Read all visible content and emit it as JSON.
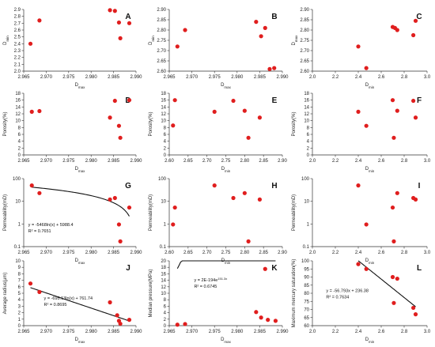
{
  "chart_data": [
    {
      "id": "A",
      "type": "scatter",
      "label": "A",
      "xlabel": "D_max",
      "ylabel": "D_min",
      "xlim": [
        2.965,
        2.99
      ],
      "ylim": [
        2,
        2.9
      ],
      "xticks": [
        2.965,
        2.97,
        2.975,
        2.98,
        2.985,
        2.99
      ],
      "yticks": [
        2,
        2.1,
        2.2,
        2.3,
        2.4,
        2.5,
        2.6,
        2.7,
        2.8,
        2.9
      ],
      "x": [
        2.9665,
        2.9685,
        2.9842,
        2.9853,
        2.9862,
        2.9865,
        2.9885
      ],
      "y": [
        2.4,
        2.74,
        2.89,
        2.88,
        2.71,
        2.48,
        2.7
      ]
    },
    {
      "id": "B",
      "type": "scatter",
      "label": "B",
      "xlabel": "D_max",
      "ylabel": "D_min",
      "xlim": [
        2.965,
        2.99
      ],
      "ylim": [
        2.6,
        2.9
      ],
      "xticks": [
        2.965,
        2.97,
        2.975,
        2.98,
        2.985,
        2.99
      ],
      "yticks": [
        2.6,
        2.65,
        2.7,
        2.75,
        2.8,
        2.85,
        2.9
      ],
      "x": [
        2.9668,
        2.9685,
        2.9842,
        2.9853,
        2.9862,
        2.9872,
        2.9882
      ],
      "y": [
        2.72,
        2.8,
        2.84,
        2.77,
        2.81,
        2.61,
        2.615
      ]
    },
    {
      "id": "C",
      "type": "scatter",
      "label": "C",
      "xlabel": "D_min",
      "ylabel": "D_max",
      "xlim": [
        2,
        3
      ],
      "ylim": [
        2.6,
        2.9
      ],
      "xticks": [
        2,
        2.2,
        2.4,
        2.6,
        2.8,
        3
      ],
      "yticks": [
        2.6,
        2.65,
        2.7,
        2.75,
        2.8,
        2.85,
        2.9
      ],
      "x": [
        2.4,
        2.47,
        2.7,
        2.72,
        2.74,
        2.88,
        2.9
      ],
      "y": [
        2.72,
        2.615,
        2.815,
        2.81,
        2.8,
        2.775,
        2.845
      ]
    },
    {
      "id": "D",
      "type": "scatter",
      "label": "D",
      "xlabel": "D_max",
      "ylabel": "Porosity(%)",
      "xlim": [
        2.965,
        2.99
      ],
      "ylim": [
        0,
        18
      ],
      "xticks": [
        2.965,
        2.97,
        2.975,
        2.98,
        2.985,
        2.99
      ],
      "yticks": [
        0,
        2,
        4,
        6,
        8,
        10,
        12,
        14,
        16,
        18
      ],
      "x": [
        2.9668,
        2.9685,
        2.9842,
        2.9853,
        2.9862,
        2.9865,
        2.9885
      ],
      "y": [
        12.6,
        12.8,
        10.9,
        15.8,
        8.5,
        5,
        16
      ]
    },
    {
      "id": "E",
      "type": "scatter",
      "label": "E",
      "xlabel": "D_min",
      "ylabel": "Porosity(%)",
      "xlim": [
        2.6,
        2.9
      ],
      "ylim": [
        0,
        18
      ],
      "xticks": [
        2.6,
        2.65,
        2.7,
        2.75,
        2.8,
        2.85,
        2.9
      ],
      "yticks": [
        0,
        2,
        4,
        6,
        8,
        10,
        12,
        14,
        16,
        18
      ],
      "x": [
        2.61,
        2.615,
        2.72,
        2.77,
        2.8,
        2.81,
        2.84
      ],
      "y": [
        8.6,
        16,
        12.6,
        15.8,
        12.9,
        5,
        10.9
      ]
    },
    {
      "id": "F",
      "type": "scatter",
      "label": "F",
      "xlabel": "D_min",
      "ylabel": "Porosity(%)",
      "xlim": [
        2,
        3
      ],
      "ylim": [
        0,
        18
      ],
      "xticks": [
        2,
        2.2,
        2.4,
        2.6,
        2.8,
        3
      ],
      "yticks": [
        0,
        2,
        4,
        6,
        8,
        10,
        12,
        14,
        16,
        18
      ],
      "x": [
        2.4,
        2.47,
        2.7,
        2.71,
        2.74,
        2.88,
        2.9
      ],
      "y": [
        12.6,
        8.5,
        16,
        5,
        12.9,
        15.8,
        10.9
      ]
    },
    {
      "id": "G",
      "type": "scatter",
      "label": "G",
      "xlabel": "D_max",
      "ylabel": "Permeability(mD)",
      "yscale": "log",
      "xlim": [
        2.965,
        2.99
      ],
      "ylim": [
        0.1,
        100
      ],
      "xticks": [
        2.965,
        2.97,
        2.975,
        2.98,
        2.985,
        2.99
      ],
      "yticks": [
        0.1,
        1,
        10,
        100
      ],
      "ytick_labels": [
        "0.1",
        "1",
        "10",
        "100"
      ],
      "x": [
        2.9668,
        2.9685,
        2.9842,
        2.9853,
        2.9862,
        2.9865,
        2.9885
      ],
      "y": [
        50,
        23,
        12,
        14,
        0.95,
        0.17,
        5.3
      ],
      "fit": {
        "kind": "ln",
        "a": -5468,
        "b": 5988.4
      },
      "equation": "y = -5468ln(x) + 5988.4",
      "r2": "R² = 0.7651"
    },
    {
      "id": "H",
      "type": "scatter",
      "label": "H",
      "xlabel": "D_min",
      "ylabel": "Permeability(mD)",
      "yscale": "log",
      "xlim": [
        2.6,
        2.9
      ],
      "ylim": [
        0.1,
        100
      ],
      "xticks": [
        2.6,
        2.65,
        2.7,
        2.75,
        2.8,
        2.85,
        2.9
      ],
      "yticks": [
        0.1,
        1,
        10,
        100
      ],
      "ytick_labels": [
        "0.1",
        "1",
        "10",
        "100"
      ],
      "x": [
        2.61,
        2.615,
        2.72,
        2.77,
        2.8,
        2.81,
        2.84
      ],
      "y": [
        0.95,
        5.3,
        50,
        14,
        23,
        0.17,
        12
      ]
    },
    {
      "id": "I",
      "type": "scatter",
      "label": "I",
      "xlabel": "D_min",
      "ylabel": "Permeability(mD)",
      "yscale": "log",
      "xlim": [
        2,
        3
      ],
      "ylim": [
        0.1,
        100
      ],
      "xticks": [
        2,
        2.2,
        2.4,
        2.6,
        2.8,
        3
      ],
      "yticks": [
        0.1,
        1,
        10,
        100
      ],
      "ytick_labels": [
        "0.1",
        "1",
        "10",
        "100"
      ],
      "x": [
        2.4,
        2.47,
        2.7,
        2.71,
        2.74,
        2.88,
        2.9
      ],
      "y": [
        50,
        0.95,
        5.3,
        0.17,
        23,
        14,
        12
      ]
    },
    {
      "id": "J",
      "type": "scatter",
      "label": "J",
      "xlabel": "D_max",
      "ylabel": "Average radius(μm)",
      "xlim": [
        2.965,
        2.99
      ],
      "ylim": [
        0,
        10
      ],
      "xticks": [
        2.965,
        2.97,
        2.975,
        2.98,
        2.985,
        2.99
      ],
      "yticks": [
        0,
        1,
        2,
        3,
        4,
        5,
        6,
        7,
        8,
        9,
        10
      ],
      "x": [
        2.9665,
        2.9685,
        2.9842,
        2.9858,
        2.9862,
        2.9865,
        2.9885
      ],
      "y": [
        6.5,
        5.2,
        3.6,
        1.6,
        0.75,
        0.3,
        0.9
      ],
      "fit": {
        "kind": "ln",
        "a": -695.13,
        "b": 761.74
      },
      "equation": "y = -695.13ln(x) + 761.74",
      "r2": "R² = 0.8695"
    },
    {
      "id": "K",
      "type": "scatter",
      "label": "K",
      "xlabel": "D_max",
      "ylabel": "Median pressure(MPa)",
      "xlim": [
        2.965,
        2.99
      ],
      "ylim": [
        0,
        20
      ],
      "xticks": [
        2.965,
        2.97,
        2.975,
        2.98,
        2.985,
        2.99
      ],
      "yticks": [
        0,
        2,
        4,
        6,
        8,
        10,
        12,
        14,
        16,
        18,
        20
      ],
      "x": [
        2.9668,
        2.9685,
        2.9842,
        2.9853,
        2.9862,
        2.9868,
        2.9885
      ],
      "y": [
        0.3,
        0.5,
        4.2,
        2.5,
        17.5,
        1.8,
        1.5
      ],
      "fit": {
        "kind": "exp",
        "a": 2e-194,
        "b": 151.3
      },
      "equation": "y = 2E-194e",
      "equation_sup": "151.3x",
      "r2": "R² = 0.6745"
    },
    {
      "id": "L",
      "type": "scatter",
      "label": "L",
      "xlabel": "D_min",
      "ylabel": "Maximum mercury saturation(%)",
      "xlim": [
        2,
        3
      ],
      "ylim": [
        60,
        100
      ],
      "xticks": [
        2,
        2.2,
        2.4,
        2.6,
        2.8,
        3
      ],
      "yticks": [
        60,
        65,
        70,
        75,
        80,
        85,
        90,
        95,
        100
      ],
      "x": [
        2.4,
        2.47,
        2.7,
        2.71,
        2.74,
        2.88,
        2.9
      ],
      "y": [
        98,
        95,
        90,
        74,
        89,
        71,
        67
      ],
      "fit": {
        "kind": "linear",
        "a": -56.793,
        "b": 236.38
      },
      "equation": "y = -56.793x + 236.38",
      "r2": "R² = 0.7634"
    }
  ]
}
